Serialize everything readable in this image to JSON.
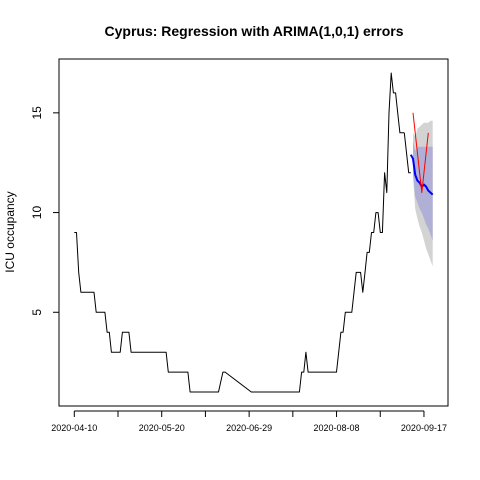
{
  "chart_data": {
    "type": "line",
    "title": "Cyprus: Regression with ARIMA(1,0,1) errors",
    "xlabel": "",
    "ylabel": "ICU occupancy",
    "x_tick_labels": [
      "2020-04-10",
      "2020-05-20",
      "2020-06-29",
      "2020-08-08",
      "2020-09-17"
    ],
    "y_ticks": [
      5,
      10,
      15
    ],
    "xlim": [
      "2020-04-03",
      "2020-09-28"
    ],
    "ylim": [
      0.3,
      17.7
    ],
    "grid": false,
    "legend": "none",
    "series": [
      {
        "role": "observed",
        "color": "#000000",
        "x": [
          "2020-04-10",
          "2020-04-11",
          "2020-04-12",
          "2020-04-13",
          "2020-04-14",
          "2020-04-19",
          "2020-04-20",
          "2020-04-21",
          "2020-04-24",
          "2020-04-25",
          "2020-04-26",
          "2020-04-27",
          "2020-04-30",
          "2020-05-01",
          "2020-05-02",
          "2020-05-05",
          "2020-05-06",
          "2020-05-07",
          "2020-05-08",
          "2020-05-10",
          "2020-05-11",
          "2020-05-12",
          "2020-05-20",
          "2020-05-22",
          "2020-05-23",
          "2020-05-31",
          "2020-06-01",
          "2020-06-02",
          "2020-06-14",
          "2020-06-15",
          "2020-06-17",
          "2020-06-18",
          "2020-06-30",
          "2020-07-01",
          "2020-07-02",
          "2020-07-03",
          "2020-07-04",
          "2020-07-05",
          "2020-07-22",
          "2020-07-23",
          "2020-07-24",
          "2020-07-25",
          "2020-07-26",
          "2020-07-27",
          "2020-07-28",
          "2020-07-29",
          "2020-07-30",
          "2020-07-31",
          "2020-08-01",
          "2020-08-02",
          "2020-08-03",
          "2020-08-04",
          "2020-08-05",
          "2020-08-06",
          "2020-08-07",
          "2020-08-08",
          "2020-08-09",
          "2020-08-10",
          "2020-08-11",
          "2020-08-12",
          "2020-08-13",
          "2020-08-14",
          "2020-08-15",
          "2020-08-16",
          "2020-08-17",
          "2020-08-18",
          "2020-08-19",
          "2020-08-20",
          "2020-08-21",
          "2020-08-22",
          "2020-08-23",
          "2020-08-24",
          "2020-08-25",
          "2020-08-26",
          "2020-08-27",
          "2020-08-28",
          "2020-08-29",
          "2020-08-30",
          "2020-08-31",
          "2020-09-01",
          "2020-09-02",
          "2020-09-03",
          "2020-09-04",
          "2020-09-05",
          "2020-09-06",
          "2020-09-07",
          "2020-09-08"
        ],
        "y": [
          9,
          9,
          7,
          6,
          6,
          6,
          5,
          5,
          5,
          4,
          4,
          3,
          3,
          3,
          4,
          4,
          3,
          3,
          3,
          3,
          3,
          3,
          3,
          3,
          2,
          2,
          2,
          1,
          1,
          1,
          2,
          2,
          1,
          1,
          1,
          1,
          1,
          1,
          1,
          2,
          2,
          3,
          2,
          2,
          2,
          2,
          2,
          2,
          2,
          2,
          2,
          2,
          2,
          2,
          2,
          2,
          3,
          4,
          4,
          5,
          5,
          5,
          5,
          6,
          7,
          7,
          7,
          6,
          7,
          8,
          8,
          9,
          9,
          10,
          10,
          9,
          9,
          12,
          11,
          15,
          17,
          16,
          16,
          15,
          14,
          14,
          14
        ]
      },
      {
        "role": "observed",
        "color": "#000000",
        "x": [
          "2020-09-08",
          "2020-09-09",
          "2020-09-10",
          "2020-09-11"
        ],
        "y": [
          14,
          13,
          12,
          12
        ]
      },
      {
        "role": "forecast",
        "color": "#0000ff",
        "x": [
          "2020-09-11",
          "2020-09-12",
          "2020-09-13",
          "2020-09-14",
          "2020-09-15",
          "2020-09-16",
          "2020-09-17",
          "2020-09-18",
          "2020-09-19",
          "2020-09-20",
          "2020-09-21"
        ],
        "y": [
          12.9,
          12.7,
          11.9,
          11.6,
          11.5,
          11.3,
          11.4,
          11.3,
          11.1,
          11.0,
          10.9
        ]
      },
      {
        "role": "actual",
        "color": "#ff0000",
        "x": [
          "2020-09-12",
          "2020-09-16",
          "2020-09-19"
        ],
        "y": [
          15,
          11,
          14
        ]
      }
    ],
    "intervals": [
      {
        "level": "95%",
        "color": "#d3d3d3",
        "x": [
          "2020-09-12",
          "2020-09-13",
          "2020-09-14",
          "2020-09-15",
          "2020-09-16",
          "2020-09-17",
          "2020-09-18",
          "2020-09-19",
          "2020-09-20",
          "2020-09-21"
        ],
        "upper": [
          14.0,
          13.8,
          14.2,
          14.3,
          14.4,
          14.5,
          14.5,
          14.5,
          14.6,
          14.6
        ],
        "lower": [
          11.8,
          10.2,
          9.7,
          9.3,
          9.0,
          8.6,
          8.2,
          7.9,
          7.6,
          7.3
        ]
      },
      {
        "level": "80%",
        "color": "#b0b0d6",
        "x": [
          "2020-09-12",
          "2020-09-13",
          "2020-09-14",
          "2020-09-15",
          "2020-09-16",
          "2020-09-17",
          "2020-09-18",
          "2020-09-19",
          "2020-09-20",
          "2020-09-21"
        ],
        "upper": [
          13.6,
          13.1,
          13.3,
          13.3,
          13.3,
          13.3,
          13.3,
          13.3,
          13.3,
          13.3
        ],
        "lower": [
          12.0,
          10.8,
          10.5,
          10.2,
          10.0,
          9.7,
          9.4,
          9.2,
          8.9,
          8.6
        ]
      }
    ]
  }
}
